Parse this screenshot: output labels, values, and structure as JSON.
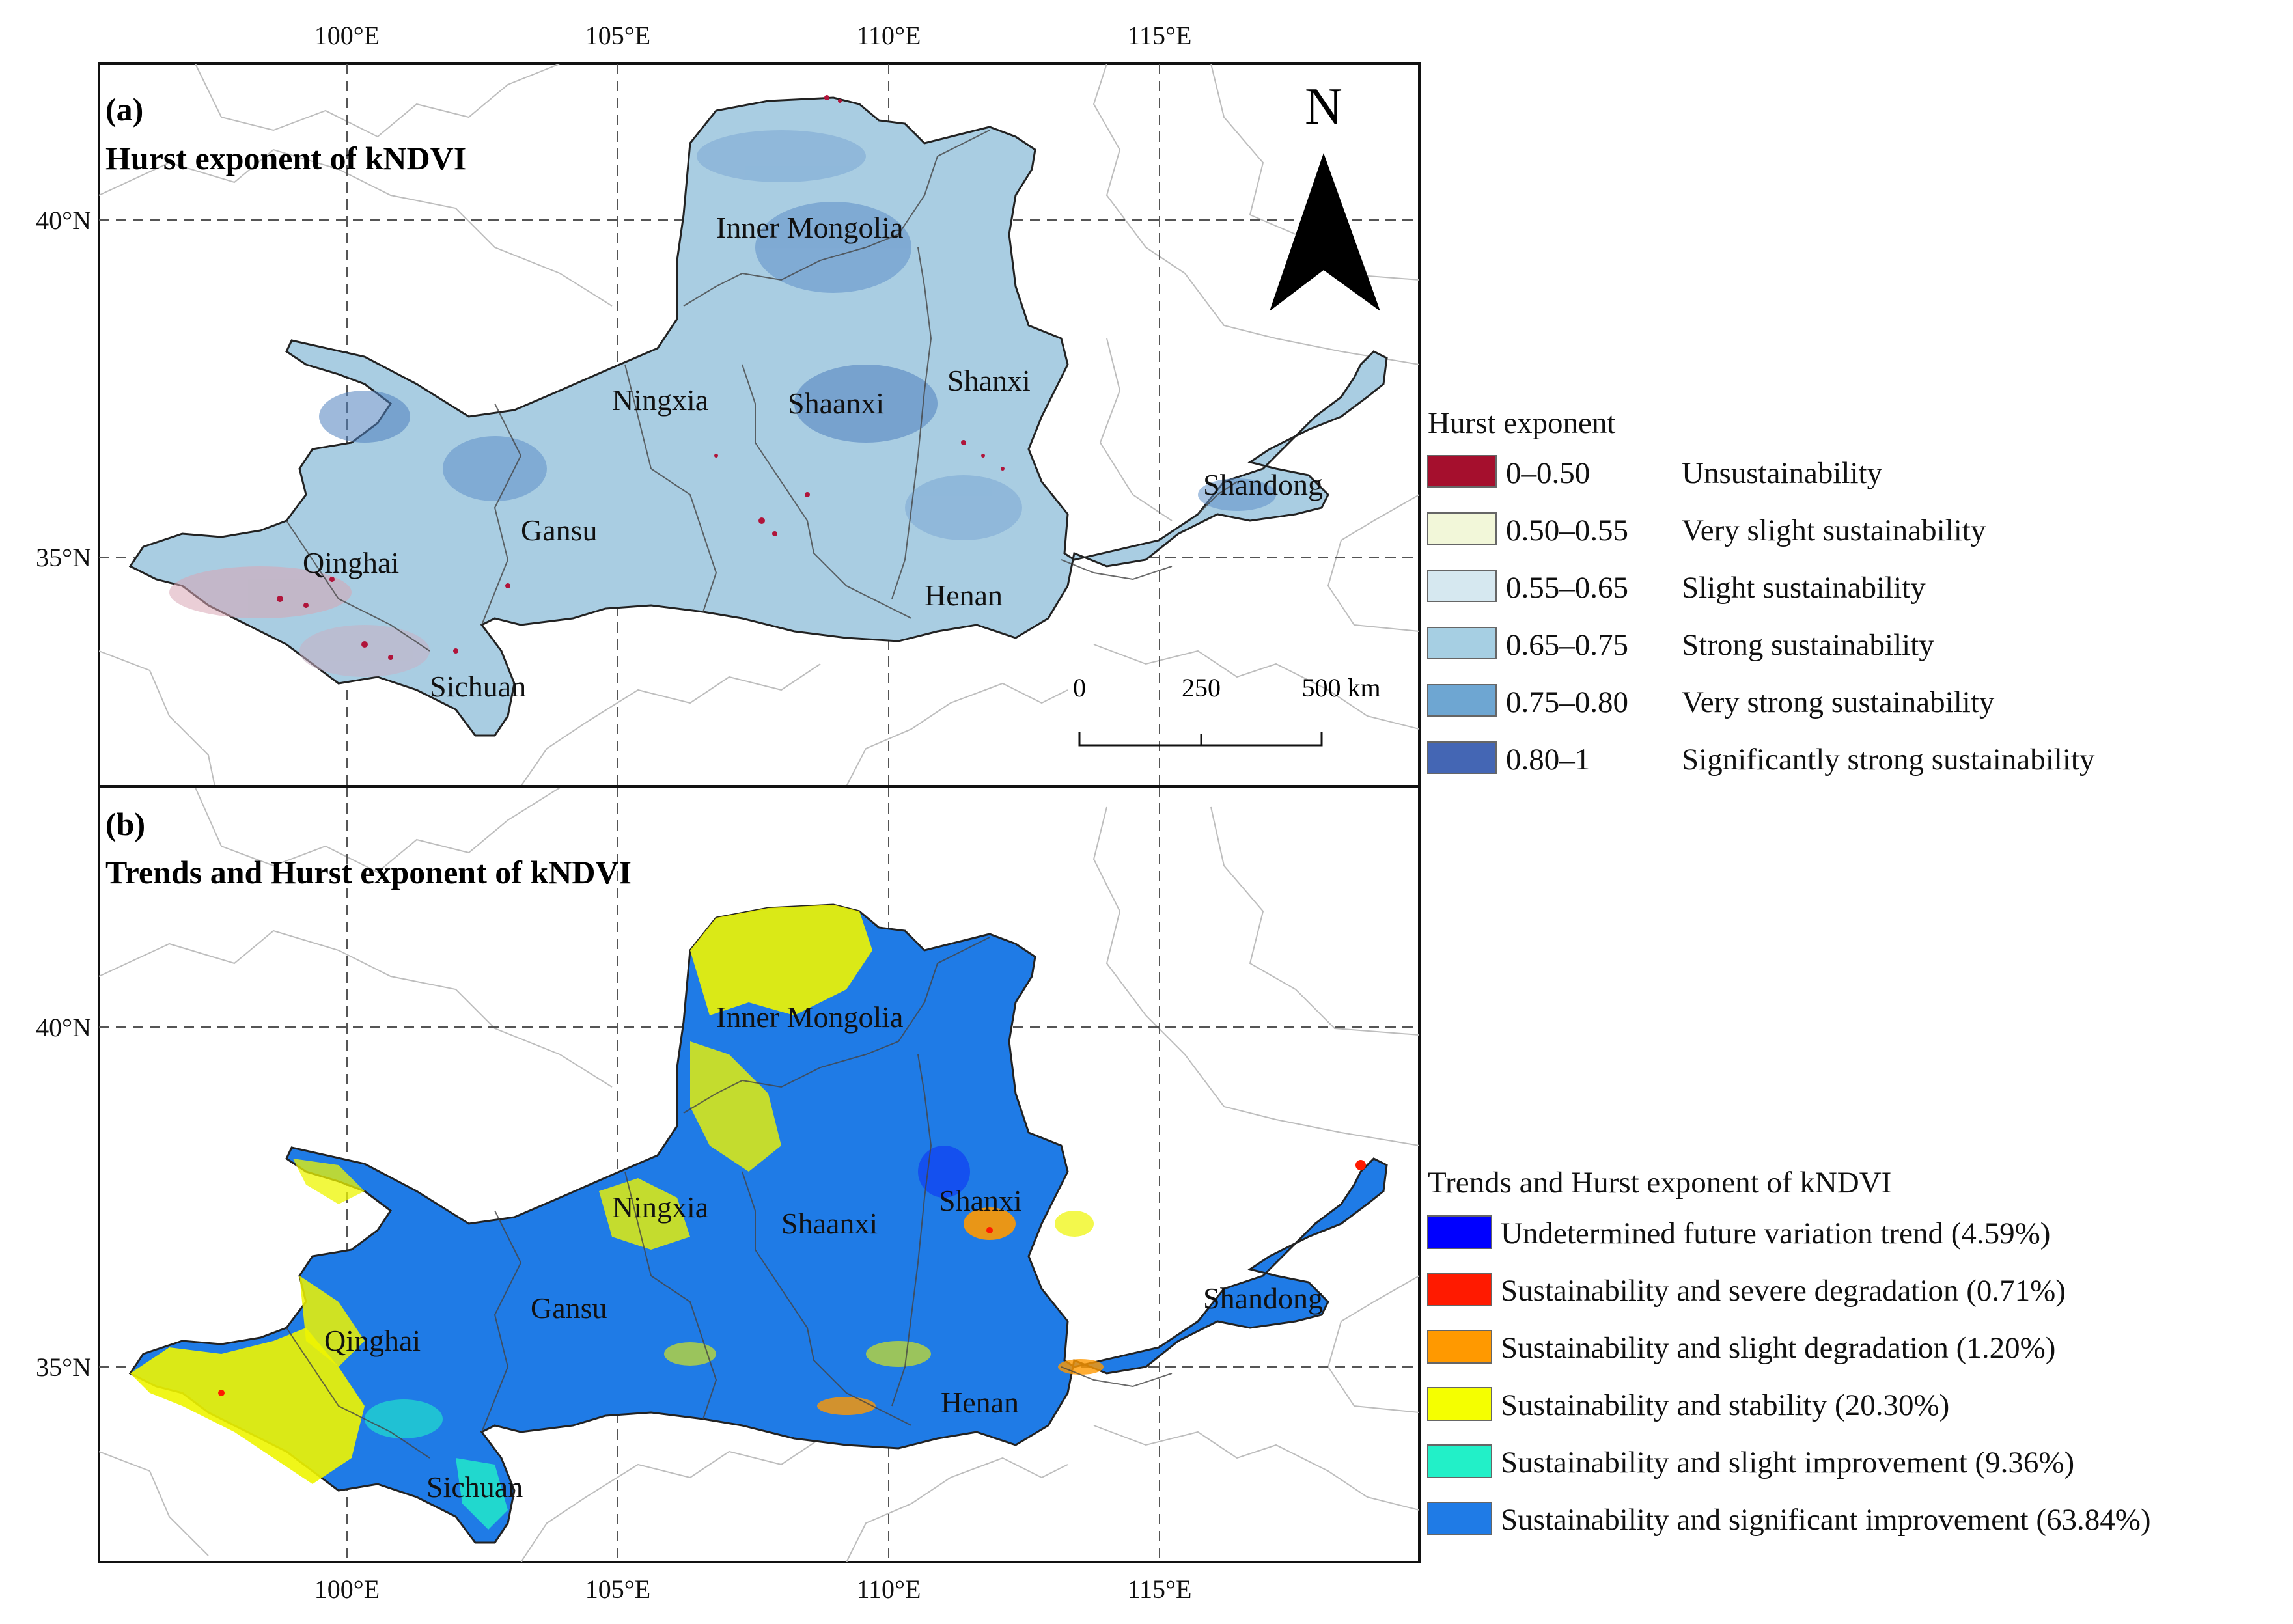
{
  "map_a": {
    "panel_label": "(a)",
    "title": "Hurst exponent of  kNDVI",
    "provinces": [
      "Inner Mongolia",
      "Ningxia",
      "Shaanxi",
      "Shanxi",
      "Gansu",
      "Qinghai",
      "Sichuan",
      "Henan",
      "Shandong"
    ]
  },
  "map_b": {
    "panel_label": "(b)",
    "title": "Trends and Hurst exponent of  kNDVI",
    "provinces": [
      "Inner Mongolia",
      "Ningxia",
      "Shaanxi",
      "Shanxi",
      "Gansu",
      "Qinghai",
      "Sichuan",
      "Henan",
      "Shandong"
    ]
  },
  "axes": {
    "lon_ticks": [
      "100°E",
      "105°E",
      "110°E",
      "115°E"
    ],
    "lat_ticks": [
      "40°N",
      "35°N"
    ]
  },
  "north_arrow": {
    "label": "N"
  },
  "scale_bar": {
    "ticks": [
      "0",
      "250",
      "500 km"
    ]
  },
  "legend_a": {
    "title": "Hurst exponent",
    "items": [
      {
        "range": "0–0.50",
        "label": "Unsustainability",
        "color": "#a50f2d"
      },
      {
        "range": "0.50–0.55",
        "label": "Very slight sustainability",
        "color": "#f2f7d9"
      },
      {
        "range": "0.55–0.65",
        "label": "Slight  sustainability",
        "color": "#d6e8f0"
      },
      {
        "range": "0.65–0.75",
        "label": "Strong sustainability",
        "color": "#a6cfe3"
      },
      {
        "range": "0.75–0.80",
        "label": "Very strong sustainability",
        "color": "#6ea6d2"
      },
      {
        "range": "0.80–1",
        "label": "Significantly strong sustainability",
        "color": "#4466b4"
      }
    ]
  },
  "legend_b": {
    "title": "Trends and Hurst exponent of  kNDVI",
    "items": [
      {
        "label": "Undetermined future variation trend (4.59%)",
        "color": "#0000ff"
      },
      {
        "label": "Sustainability and severe degradation (0.71%)",
        "color": "#ff1a00"
      },
      {
        "label": "Sustainability and slight degradation (1.20%)",
        "color": "#ff9900"
      },
      {
        "label": "Sustainability and stability (20.30%)",
        "color": "#f5ff00"
      },
      {
        "label": "Sustainability and slight improvement (9.36%)",
        "color": "#22f0c8"
      },
      {
        "label": "Sustainability and significant improvement (63.84%)",
        "color": "#1f7be6"
      }
    ]
  }
}
